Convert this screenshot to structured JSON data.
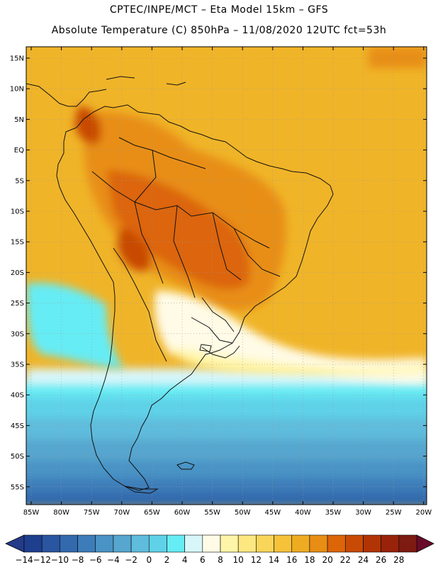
{
  "header": {
    "line1": "CPTEC/INPE/MCT –  Eta Model 15km – GFS",
    "line2": "Absolute Temperature (C) 850hPa – 11/08/2020 12UTC fct=53h"
  },
  "axes": {
    "lat_labels": [
      "15N",
      "10N",
      "5N",
      "EQ",
      "5S",
      "10S",
      "15S",
      "20S",
      "25S",
      "30S",
      "35S",
      "40S",
      "45S",
      "50S",
      "55S"
    ],
    "lon_labels": [
      "85W",
      "80W",
      "75W",
      "70W",
      "65W",
      "60W",
      "55W",
      "50W",
      "45W",
      "40W",
      "35W",
      "30W",
      "25W",
      "20W"
    ]
  },
  "colorbar": {
    "labels": [
      "-14",
      "-12",
      "-10",
      "-8",
      "-6",
      "-4",
      "-2",
      "0",
      "2",
      "4",
      "6",
      "8",
      "10",
      "12",
      "14",
      "16",
      "18",
      "20",
      "22",
      "24",
      "26",
      "28"
    ],
    "colors": [
      "#1e3f8e",
      "#2a55a0",
      "#3369ad",
      "#3c7db9",
      "#4a93c5",
      "#56a6cf",
      "#5fbcdc",
      "#5fd2e8",
      "#66ecf4",
      "#d8f6fa",
      "#fffbe6",
      "#fff5a8",
      "#fde780",
      "#f9d55a",
      "#f5c23a",
      "#eeac22",
      "#e88e14",
      "#dc6508",
      "#c84a05",
      "#b13405",
      "#98230a",
      "#7d1a12"
    ],
    "under_color": "#243a8a",
    "over_color": "#6a0a2a"
  }
}
